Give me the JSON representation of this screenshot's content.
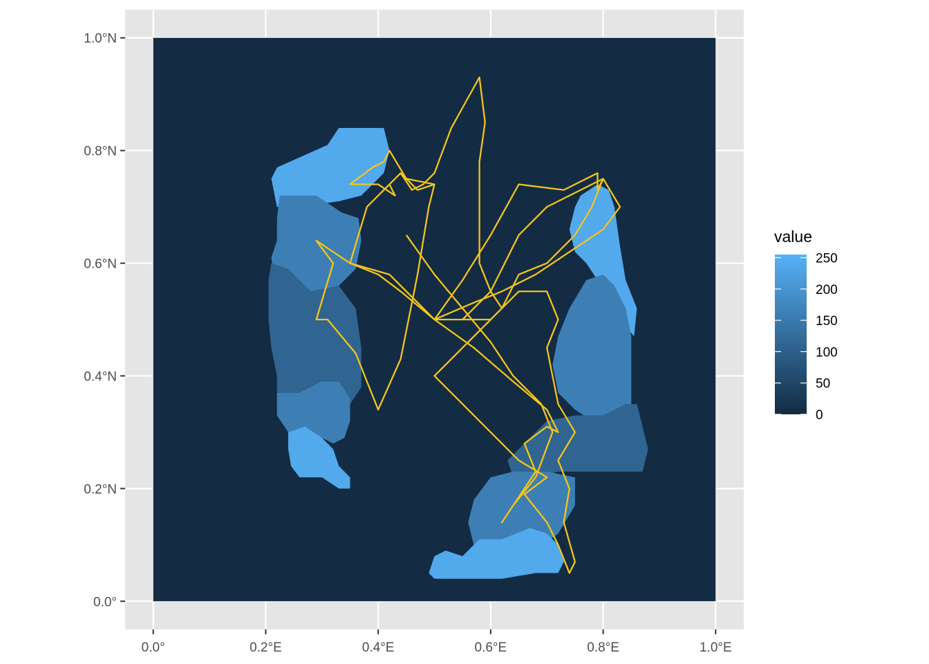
{
  "map": {
    "x_axis": {
      "range": [
        -0.05,
        1.05
      ],
      "ticks": [
        {
          "value": 0.0,
          "label": "0.0°"
        },
        {
          "value": 0.2,
          "label": "0.2°E"
        },
        {
          "value": 0.4,
          "label": "0.4°E"
        },
        {
          "value": 0.6,
          "label": "0.6°E"
        },
        {
          "value": 0.8,
          "label": "0.8°E"
        },
        {
          "value": 1.0,
          "label": "1.0°E"
        }
      ]
    },
    "y_axis": {
      "range": [
        -0.05,
        1.05
      ],
      "ticks": [
        {
          "value": 0.0,
          "label": "0.0°"
        },
        {
          "value": 0.2,
          "label": "0.2°N"
        },
        {
          "value": 0.4,
          "label": "0.4°N"
        },
        {
          "value": 0.6,
          "label": "0.6°N"
        },
        {
          "value": 0.8,
          "label": "0.8°N"
        },
        {
          "value": 1.0,
          "label": "1.0°N"
        }
      ]
    },
    "colors": {
      "panel_background": "#e5e5e5",
      "grid": "#ffffff",
      "raster_base": "#132b43",
      "track": "#f5c518"
    },
    "legend": {
      "title": "value",
      "placement": "right",
      "range": [
        0,
        255
      ],
      "ticks": [
        {
          "value": 0,
          "label": "0"
        },
        {
          "value": 50,
          "label": "50"
        },
        {
          "value": 100,
          "label": "100"
        },
        {
          "value": 150,
          "label": "150"
        },
        {
          "value": 200,
          "label": "200"
        },
        {
          "value": 250,
          "label": "250"
        }
      ],
      "low_color": "#132b43",
      "high_color": "#56b1f7"
    },
    "raster_regions": [
      {
        "name": "left-top-blob",
        "value": 240,
        "points": [
          [
            0.21,
            0.75
          ],
          [
            0.22,
            0.77
          ],
          [
            0.31,
            0.81
          ],
          [
            0.33,
            0.84
          ],
          [
            0.41,
            0.84
          ],
          [
            0.42,
            0.8
          ],
          [
            0.41,
            0.76
          ],
          [
            0.37,
            0.72
          ],
          [
            0.33,
            0.71
          ],
          [
            0.26,
            0.7
          ],
          [
            0.22,
            0.7
          ]
        ]
      },
      {
        "name": "left-upper-mid-blob",
        "value": 160,
        "points": [
          [
            0.225,
            0.72
          ],
          [
            0.29,
            0.72
          ],
          [
            0.335,
            0.69
          ],
          [
            0.365,
            0.68
          ],
          [
            0.37,
            0.64
          ],
          [
            0.36,
            0.59
          ],
          [
            0.33,
            0.56
          ],
          [
            0.29,
            0.55
          ],
          [
            0.25,
            0.55
          ],
          [
            0.215,
            0.57
          ],
          [
            0.21,
            0.61
          ],
          [
            0.22,
            0.64
          ],
          [
            0.22,
            0.68
          ]
        ]
      },
      {
        "name": "left-mid-blob",
        "value": 110,
        "points": [
          [
            0.21,
            0.6
          ],
          [
            0.24,
            0.59
          ],
          [
            0.28,
            0.55
          ],
          [
            0.33,
            0.56
          ],
          [
            0.36,
            0.52
          ],
          [
            0.37,
            0.45
          ],
          [
            0.37,
            0.38
          ],
          [
            0.35,
            0.35
          ],
          [
            0.3,
            0.37
          ],
          [
            0.26,
            0.37
          ],
          [
            0.22,
            0.37
          ],
          [
            0.22,
            0.4
          ],
          [
            0.21,
            0.45
          ],
          [
            0.205,
            0.5
          ],
          [
            0.205,
            0.57
          ]
        ]
      },
      {
        "name": "left-lower-mid-blob",
        "value": 160,
        "points": [
          [
            0.22,
            0.37
          ],
          [
            0.26,
            0.37
          ],
          [
            0.3,
            0.39
          ],
          [
            0.33,
            0.39
          ],
          [
            0.35,
            0.36
          ],
          [
            0.35,
            0.32
          ],
          [
            0.34,
            0.29
          ],
          [
            0.32,
            0.28
          ],
          [
            0.28,
            0.3
          ],
          [
            0.24,
            0.3
          ],
          [
            0.22,
            0.33
          ]
        ]
      },
      {
        "name": "left-bottom-blob",
        "value": 240,
        "points": [
          [
            0.24,
            0.3
          ],
          [
            0.27,
            0.31
          ],
          [
            0.3,
            0.29
          ],
          [
            0.32,
            0.27
          ],
          [
            0.33,
            0.24
          ],
          [
            0.35,
            0.22
          ],
          [
            0.35,
            0.2
          ],
          [
            0.33,
            0.2
          ],
          [
            0.3,
            0.22
          ],
          [
            0.26,
            0.22
          ],
          [
            0.245,
            0.24
          ],
          [
            0.24,
            0.27
          ]
        ]
      },
      {
        "name": "right-top-blob",
        "value": 240,
        "points": [
          [
            0.76,
            0.72
          ],
          [
            0.79,
            0.74
          ],
          [
            0.81,
            0.73
          ],
          [
            0.82,
            0.7
          ],
          [
            0.83,
            0.63
          ],
          [
            0.84,
            0.57
          ],
          [
            0.86,
            0.52
          ],
          [
            0.855,
            0.47
          ],
          [
            0.83,
            0.5
          ],
          [
            0.81,
            0.54
          ],
          [
            0.79,
            0.57
          ],
          [
            0.77,
            0.6
          ],
          [
            0.75,
            0.62
          ],
          [
            0.74,
            0.66
          ],
          [
            0.75,
            0.7
          ]
        ]
      },
      {
        "name": "right-upper-mid-blob",
        "value": 160,
        "points": [
          [
            0.74,
            0.52
          ],
          [
            0.77,
            0.57
          ],
          [
            0.8,
            0.58
          ],
          [
            0.82,
            0.56
          ],
          [
            0.84,
            0.52
          ],
          [
            0.85,
            0.47
          ],
          [
            0.85,
            0.4
          ],
          [
            0.85,
            0.35
          ],
          [
            0.82,
            0.32
          ],
          [
            0.78,
            0.32
          ],
          [
            0.75,
            0.34
          ],
          [
            0.72,
            0.37
          ],
          [
            0.71,
            0.42
          ],
          [
            0.72,
            0.47
          ]
        ]
      },
      {
        "name": "right-lower-mid-blob",
        "value": 110,
        "points": [
          [
            0.65,
            0.27
          ],
          [
            0.7,
            0.32
          ],
          [
            0.75,
            0.33
          ],
          [
            0.8,
            0.33
          ],
          [
            0.84,
            0.35
          ],
          [
            0.86,
            0.35
          ],
          [
            0.87,
            0.31
          ],
          [
            0.88,
            0.27
          ],
          [
            0.87,
            0.23
          ],
          [
            0.82,
            0.23
          ],
          [
            0.77,
            0.23
          ],
          [
            0.72,
            0.23
          ],
          [
            0.68,
            0.22
          ],
          [
            0.64,
            0.22
          ],
          [
            0.63,
            0.25
          ]
        ]
      },
      {
        "name": "right-bottom-mid-blob",
        "value": 160,
        "points": [
          [
            0.6,
            0.22
          ],
          [
            0.64,
            0.23
          ],
          [
            0.7,
            0.23
          ],
          [
            0.75,
            0.22
          ],
          [
            0.75,
            0.17
          ],
          [
            0.72,
            0.12
          ],
          [
            0.68,
            0.09
          ],
          [
            0.62,
            0.08
          ],
          [
            0.57,
            0.1
          ],
          [
            0.56,
            0.14
          ],
          [
            0.57,
            0.18
          ]
        ]
      },
      {
        "name": "right-bottom-blob",
        "value": 240,
        "points": [
          [
            0.49,
            0.05
          ],
          [
            0.5,
            0.08
          ],
          [
            0.52,
            0.09
          ],
          [
            0.55,
            0.08
          ],
          [
            0.58,
            0.11
          ],
          [
            0.62,
            0.11
          ],
          [
            0.67,
            0.13
          ],
          [
            0.7,
            0.12
          ],
          [
            0.72,
            0.1
          ],
          [
            0.73,
            0.07
          ],
          [
            0.72,
            0.05
          ],
          [
            0.68,
            0.05
          ],
          [
            0.62,
            0.04
          ],
          [
            0.55,
            0.04
          ],
          [
            0.5,
            0.04
          ]
        ]
      }
    ],
    "track": [
      [
        0.45,
        0.65
      ],
      [
        0.5,
        0.58
      ],
      [
        0.55,
        0.52
      ],
      [
        0.6,
        0.46
      ],
      [
        0.64,
        0.4
      ],
      [
        0.69,
        0.35
      ],
      [
        0.71,
        0.3
      ],
      [
        0.68,
        0.22
      ],
      [
        0.64,
        0.17
      ],
      [
        0.62,
        0.14
      ],
      [
        0.68,
        0.23
      ],
      [
        0.66,
        0.28
      ],
      [
        0.7,
        0.31
      ],
      [
        0.72,
        0.3
      ],
      [
        0.7,
        0.34
      ],
      [
        0.64,
        0.39
      ],
      [
        0.57,
        0.45
      ],
      [
        0.5,
        0.5
      ],
      [
        0.44,
        0.55
      ],
      [
        0.4,
        0.58
      ],
      [
        0.35,
        0.6
      ],
      [
        0.38,
        0.7
      ],
      [
        0.44,
        0.76
      ],
      [
        0.4,
        0.72
      ],
      [
        0.42,
        0.74
      ],
      [
        0.43,
        0.72
      ],
      [
        0.4,
        0.74
      ],
      [
        0.35,
        0.74
      ],
      [
        0.39,
        0.77
      ],
      [
        0.41,
        0.78
      ],
      [
        0.42,
        0.8
      ],
      [
        0.45,
        0.75
      ],
      [
        0.5,
        0.74
      ],
      [
        0.47,
        0.73
      ],
      [
        0.44,
        0.76
      ],
      [
        0.46,
        0.73
      ],
      [
        0.48,
        0.74
      ],
      [
        0.5,
        0.76
      ],
      [
        0.53,
        0.84
      ],
      [
        0.58,
        0.93
      ],
      [
        0.59,
        0.85
      ],
      [
        0.58,
        0.78
      ],
      [
        0.58,
        0.6
      ],
      [
        0.6,
        0.55
      ],
      [
        0.62,
        0.52
      ],
      [
        0.65,
        0.58
      ],
      [
        0.7,
        0.6
      ],
      [
        0.75,
        0.65
      ],
      [
        0.78,
        0.7
      ],
      [
        0.8,
        0.75
      ],
      [
        0.79,
        0.73
      ],
      [
        0.79,
        0.76
      ],
      [
        0.73,
        0.73
      ],
      [
        0.65,
        0.74
      ],
      [
        0.6,
        0.65
      ],
      [
        0.55,
        0.57
      ],
      [
        0.5,
        0.5
      ],
      [
        0.57,
        0.53
      ],
      [
        0.62,
        0.55
      ],
      [
        0.68,
        0.58
      ],
      [
        0.74,
        0.62
      ],
      [
        0.8,
        0.66
      ],
      [
        0.83,
        0.7
      ],
      [
        0.8,
        0.75
      ],
      [
        0.7,
        0.7
      ],
      [
        0.65,
        0.65
      ],
      [
        0.6,
        0.55
      ],
      [
        0.55,
        0.5
      ],
      [
        0.5,
        0.5
      ],
      [
        0.55,
        0.5
      ],
      [
        0.6,
        0.5
      ],
      [
        0.65,
        0.55
      ],
      [
        0.7,
        0.55
      ],
      [
        0.72,
        0.5
      ],
      [
        0.7,
        0.45
      ],
      [
        0.72,
        0.35
      ],
      [
        0.75,
        0.3
      ],
      [
        0.72,
        0.25
      ],
      [
        0.74,
        0.2
      ],
      [
        0.73,
        0.14
      ],
      [
        0.75,
        0.07
      ],
      [
        0.74,
        0.05
      ],
      [
        0.72,
        0.1
      ],
      [
        0.7,
        0.14
      ],
      [
        0.66,
        0.19
      ],
      [
        0.7,
        0.22
      ],
      [
        0.65,
        0.25
      ],
      [
        0.6,
        0.3
      ],
      [
        0.55,
        0.35
      ],
      [
        0.5,
        0.4
      ],
      [
        0.55,
        0.45
      ],
      [
        0.6,
        0.5
      ],
      [
        0.55,
        0.5
      ],
      [
        0.5,
        0.5
      ],
      [
        0.42,
        0.58
      ],
      [
        0.35,
        0.6
      ],
      [
        0.29,
        0.64
      ],
      [
        0.32,
        0.6
      ],
      [
        0.29,
        0.5
      ],
      [
        0.31,
        0.5
      ],
      [
        0.36,
        0.44
      ],
      [
        0.4,
        0.34
      ],
      [
        0.44,
        0.43
      ],
      [
        0.45,
        0.48
      ],
      [
        0.47,
        0.58
      ],
      [
        0.49,
        0.7
      ],
      [
        0.5,
        0.74
      ]
    ]
  }
}
